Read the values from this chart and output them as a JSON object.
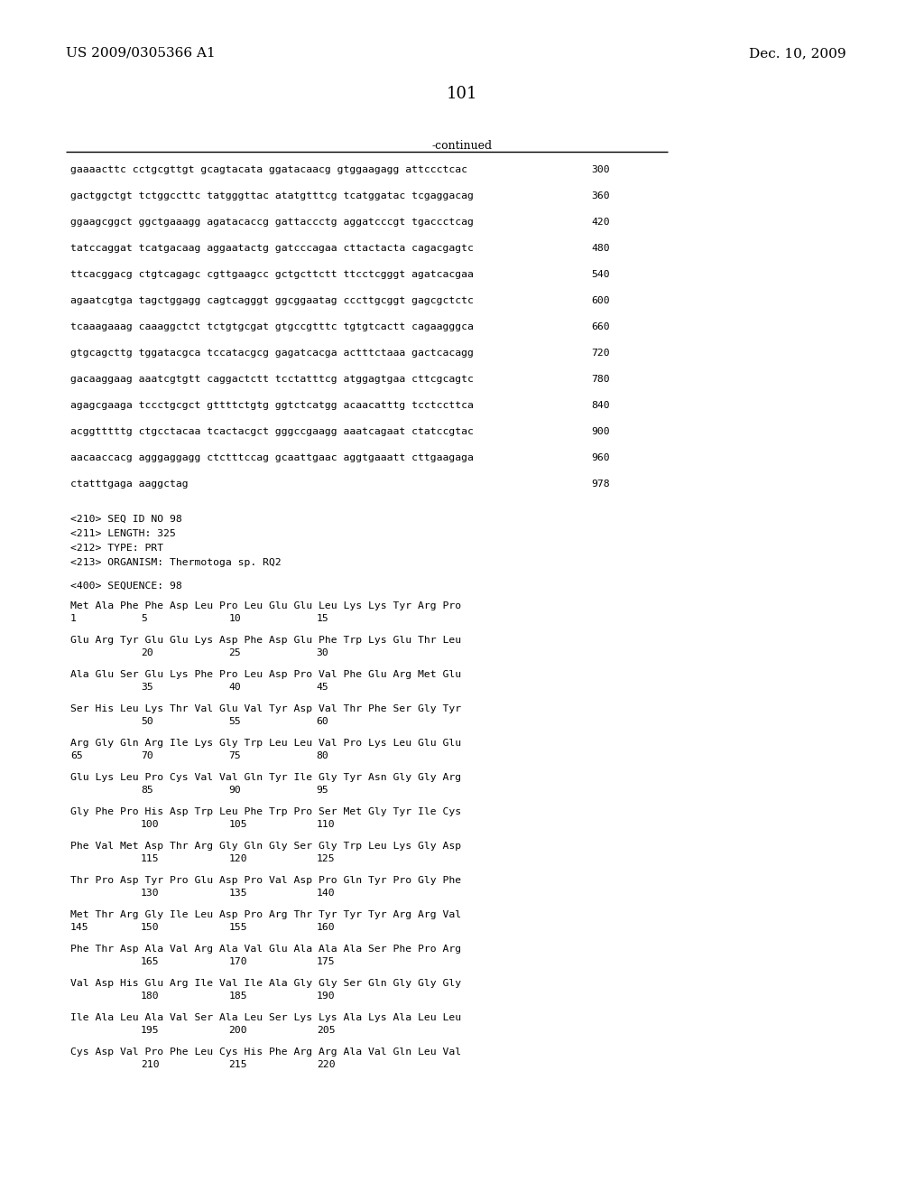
{
  "header_left": "US 2009/0305366 A1",
  "header_right": "Dec. 10, 2009",
  "page_number": "101",
  "continued_label": "-continued",
  "background_color": "#ffffff",
  "text_color": "#000000",
  "dna_lines": [
    [
      "gaaaacttc cctgcgttgt gcagtacata ggatacaacg gtggaagagg attccctcac",
      "300"
    ],
    [
      "gactggctgt tctggccttc tatgggttac atatgtttcg tcatggatac tcgaggacag",
      "360"
    ],
    [
      "ggaagcggct ggctgaaagg agatacaccg gattaccctg aggatcccgt tgaccctcag",
      "420"
    ],
    [
      "tatccaggat tcatgacaag aggaatactg gatcccagaa cttactacta cagacgagtc",
      "480"
    ],
    [
      "ttcacggacg ctgtcagagc cgttgaagcc gctgcttctt ttcctcgggt agatcacgaa",
      "540"
    ],
    [
      "agaatcgtga tagctggagg cagtcagggt ggcggaatag cccttgcggt gagcgctctc",
      "600"
    ],
    [
      "tcaaagaaag caaaggctct tctgtgcgat gtgccgtttc tgtgtcactt cagaagggca",
      "660"
    ],
    [
      "gtgcagcttg tggatacgca tccatacgcg gagatcacga actttctaaa gactcacagg",
      "720"
    ],
    [
      "gacaaggaag aaatcgtgtt caggactctt tcctatttcg atggagtgaa cttcgcagtc",
      "780"
    ],
    [
      "agagcgaaga tccctgcgct gttttctgtg ggtctcatgg acaacatttg tcctccttca",
      "840"
    ],
    [
      "acggtttttg ctgcctacaa tcactacgct gggccgaagg aaatcagaat ctatccgtac",
      "900"
    ],
    [
      "aacaaccacg agggaggagg ctctttccag gcaattgaac aggtgaaatt cttgaagaga",
      "960"
    ],
    [
      "ctatttgaga aaggctag",
      "978"
    ]
  ],
  "seq_info": [
    "<210> SEQ ID NO 98",
    "<211> LENGTH: 325",
    "<212> TYPE: PRT",
    "<213> ORGANISM: Thermotoga sp. RQ2"
  ],
  "sequence_label": "<400> SEQUENCE: 98",
  "protein_lines": [
    {
      "seq": "Met Ala Phe Phe Asp Leu Pro Leu Glu Glu Leu Lys Lys Tyr Arg Pro",
      "nums": [
        [
          "1",
          "1"
        ],
        [
          "5",
          "5"
        ],
        [
          "10",
          "10"
        ],
        [
          "15",
          "15"
        ]
      ]
    },
    {
      "seq": "Glu Arg Tyr Glu Glu Lys Asp Phe Asp Glu Phe Trp Lys Glu Thr Leu",
      "nums": [
        [
          "5",
          "20"
        ],
        [
          "10",
          "25"
        ],
        [
          "15",
          "30"
        ]
      ]
    },
    {
      "seq": "Ala Glu Ser Glu Lys Phe Pro Leu Asp Pro Val Phe Glu Arg Met Glu",
      "nums": [
        [
          "5",
          "35"
        ],
        [
          "10",
          "40"
        ],
        [
          "15",
          "45"
        ]
      ]
    },
    {
      "seq": "Ser His Leu Lys Thr Val Glu Val Tyr Asp Val Thr Phe Ser Gly Tyr",
      "nums": [
        [
          "5",
          "50"
        ],
        [
          "10",
          "55"
        ],
        [
          "15",
          "60"
        ]
      ]
    },
    {
      "seq": "Arg Gly Gln Arg Ile Lys Gly Trp Leu Leu Val Pro Lys Leu Glu Glu",
      "nums": [
        [
          "1",
          "65"
        ],
        [
          "5",
          "70"
        ],
        [
          "10",
          "75"
        ],
        [
          "15",
          "80"
        ]
      ]
    },
    {
      "seq": "Glu Lys Leu Pro Cys Val Val Gln Tyr Ile Gly Tyr Asn Gly Gly Arg",
      "nums": [
        [
          "5",
          "85"
        ],
        [
          "10",
          "90"
        ],
        [
          "15",
          "95"
        ]
      ]
    },
    {
      "seq": "Gly Phe Pro His Asp Trp Leu Phe Trp Pro Ser Met Gly Tyr Ile Cys",
      "nums": [
        [
          "5",
          "100"
        ],
        [
          "10",
          "105"
        ],
        [
          "15",
          "110"
        ]
      ]
    },
    {
      "seq": "Phe Val Met Asp Thr Arg Gly Gln Gly Ser Gly Trp Leu Lys Gly Asp",
      "nums": [
        [
          "5",
          "115"
        ],
        [
          "10",
          "120"
        ],
        [
          "15",
          "125"
        ]
      ]
    },
    {
      "seq": "Thr Pro Asp Tyr Pro Glu Asp Pro Val Asp Pro Gln Tyr Pro Gly Phe",
      "nums": [
        [
          "5",
          "130"
        ],
        [
          "10",
          "135"
        ],
        [
          "15",
          "140"
        ]
      ]
    },
    {
      "seq": "Met Thr Arg Gly Ile Leu Asp Pro Arg Thr Tyr Tyr Tyr Arg Arg Val",
      "nums": [
        [
          "1",
          "145"
        ],
        [
          "5",
          "150"
        ],
        [
          "10",
          "155"
        ],
        [
          "15",
          "160"
        ]
      ]
    },
    {
      "seq": "Phe Thr Asp Ala Val Arg Ala Val Glu Ala Ala Ala Ser Phe Pro Arg",
      "nums": [
        [
          "5",
          "165"
        ],
        [
          "10",
          "170"
        ],
        [
          "15",
          "175"
        ]
      ]
    },
    {
      "seq": "Val Asp His Glu Arg Ile Val Ile Ala Gly Gly Ser Gln Gly Gly Gly",
      "nums": [
        [
          "5",
          "180"
        ],
        [
          "10",
          "185"
        ],
        [
          "15",
          "190"
        ]
      ]
    },
    {
      "seq": "Ile Ala Leu Ala Val Ser Ala Leu Ser Lys Lys Ala Lys Ala Leu Leu",
      "nums": [
        [
          "5",
          "195"
        ],
        [
          "10",
          "200"
        ],
        [
          "15",
          "205"
        ]
      ]
    },
    {
      "seq": "Cys Asp Val Pro Phe Leu Cys His Phe Arg Arg Ala Val Gln Leu Val",
      "nums": [
        [
          "5",
          "210"
        ],
        [
          "10",
          "215"
        ],
        [
          "15",
          "220"
        ]
      ]
    }
  ]
}
